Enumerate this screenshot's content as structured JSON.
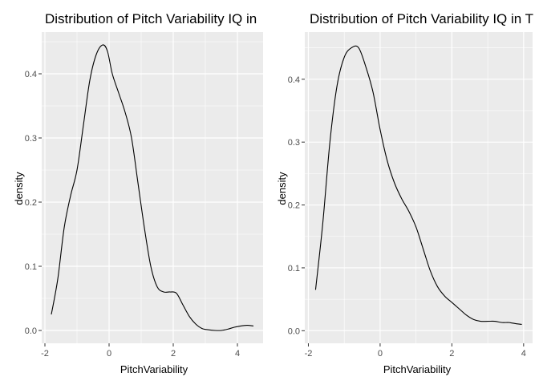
{
  "chart_data": [
    {
      "type": "line",
      "title": "Distribution of Pitch Variability IQ in",
      "xlabel": "PitchVariability",
      "ylabel": "density",
      "xlim": [
        -2.1,
        4.8
      ],
      "ylim": [
        -0.02,
        0.465
      ],
      "xticks": [
        -2,
        0,
        2,
        4
      ],
      "yticks": [
        0.0,
        0.1,
        0.2,
        0.3,
        0.4
      ],
      "x_tick_labels": [
        "-2",
        "0",
        "2",
        "4"
      ],
      "y_tick_labels": [
        "0.0",
        "0.1",
        "0.2",
        "0.3",
        "0.4"
      ],
      "grid": true,
      "series": [
        {
          "x": [
            -1.8,
            -1.6,
            -1.4,
            -1.2,
            -1.0,
            -0.8,
            -0.6,
            -0.4,
            -0.2,
            -0.05,
            0.1,
            0.3,
            0.5,
            0.7,
            0.9,
            1.1,
            1.3,
            1.5,
            1.7,
            1.9,
            2.1,
            2.3,
            2.5,
            2.7,
            2.9,
            3.1,
            3.3,
            3.5,
            3.7,
            3.9,
            4.1,
            4.3,
            4.5
          ],
          "y": [
            0.025,
            0.08,
            0.16,
            0.21,
            0.25,
            0.32,
            0.39,
            0.43,
            0.445,
            0.435,
            0.4,
            0.37,
            0.34,
            0.3,
            0.23,
            0.16,
            0.1,
            0.068,
            0.06,
            0.06,
            0.058,
            0.04,
            0.022,
            0.01,
            0.003,
            0.001,
            0.0,
            0.0,
            0.002,
            0.005,
            0.007,
            0.008,
            0.007
          ]
        }
      ]
    },
    {
      "type": "line",
      "title": "Distribution of Pitch Variability IQ in T",
      "xlabel": "PitchVariability",
      "ylabel": "density",
      "xlim": [
        -2.1,
        4.25
      ],
      "ylim": [
        -0.02,
        0.475
      ],
      "xticks": [
        -2,
        0,
        2,
        4
      ],
      "yticks": [
        0.0,
        0.1,
        0.2,
        0.3,
        0.4
      ],
      "x_tick_labels": [
        "-2",
        "0",
        "2",
        "4"
      ],
      "y_tick_labels": [
        "0.0",
        "0.1",
        "0.2",
        "0.3",
        "0.4"
      ],
      "grid": true,
      "series": [
        {
          "x": [
            -1.8,
            -1.6,
            -1.4,
            -1.2,
            -1.0,
            -0.8,
            -0.6,
            -0.4,
            -0.2,
            0.0,
            0.2,
            0.4,
            0.6,
            0.8,
            1.0,
            1.2,
            1.4,
            1.6,
            1.8,
            2.0,
            2.2,
            2.4,
            2.6,
            2.8,
            3.0,
            3.2,
            3.4,
            3.6,
            3.8,
            3.95
          ],
          "y": [
            0.065,
            0.17,
            0.3,
            0.39,
            0.435,
            0.45,
            0.45,
            0.42,
            0.38,
            0.32,
            0.27,
            0.235,
            0.21,
            0.19,
            0.165,
            0.13,
            0.095,
            0.07,
            0.055,
            0.045,
            0.035,
            0.025,
            0.018,
            0.015,
            0.015,
            0.015,
            0.013,
            0.013,
            0.011,
            0.01
          ]
        }
      ]
    }
  ]
}
